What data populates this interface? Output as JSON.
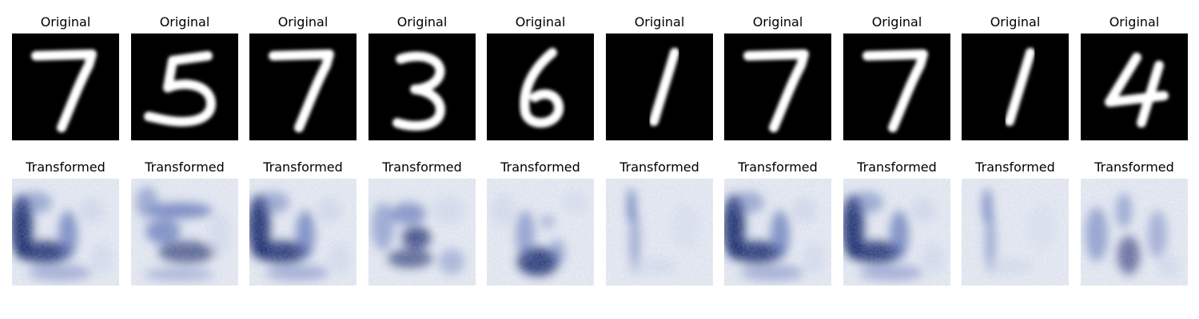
{
  "figure": {
    "original_label": "Original",
    "transformed_label": "Transformed",
    "samples": [
      {
        "digit": "7",
        "transformed_style": "blue-heavy"
      },
      {
        "digit": "5",
        "transformed_style": "five-like"
      },
      {
        "digit": "7",
        "transformed_style": "blue-heavy"
      },
      {
        "digit": "3",
        "transformed_style": "three-like"
      },
      {
        "digit": "6",
        "transformed_style": "six-like"
      },
      {
        "digit": "1",
        "transformed_style": "faint-stroke"
      },
      {
        "digit": "7",
        "transformed_style": "blue-heavy"
      },
      {
        "digit": "7",
        "transformed_style": "blue-heavy"
      },
      {
        "digit": "1",
        "transformed_style": "faint-stroke"
      },
      {
        "digit": "4",
        "transformed_style": "gray-blotch"
      }
    ]
  },
  "colors": {
    "original_background": "#000000",
    "original_stroke": "#ffffff",
    "transformed_background": "#e6eaf2",
    "transformed_dark": "#1a2a6c",
    "transformed_mid": "#5a6fb5",
    "transformed_light": "#c9d3ea"
  }
}
